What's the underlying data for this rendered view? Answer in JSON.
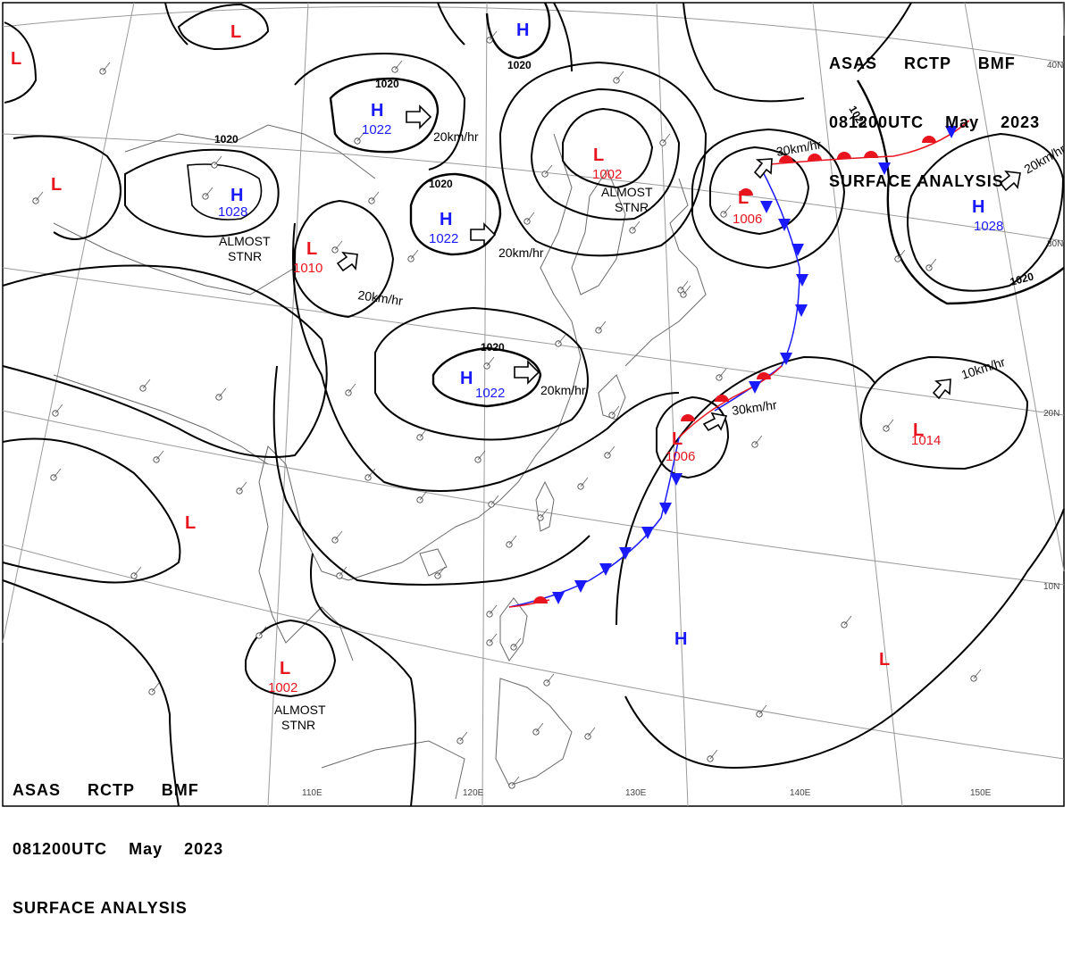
{
  "header": {
    "line1": [
      "ASAS",
      "RCTP",
      "BMF"
    ],
    "line2": [
      "081200UTC",
      "May",
      "2023"
    ],
    "line3": "SURFACE ANALYSIS"
  },
  "colors": {
    "high": "#1a1aff",
    "low": "#e8141e",
    "front_warm": "#e8141e",
    "front_cold": "#1a1aff",
    "isobar": "#000000",
    "grid": "#9a9a9a",
    "coast": "#6a6a6a"
  },
  "lat_labels": [
    "40N",
    "30N",
    "20N",
    "10N"
  ],
  "lon_labels": [
    "110E",
    "120E",
    "130E",
    "140E",
    "150E"
  ],
  "systems": [
    {
      "type": "H",
      "pressure": "1022"
    },
    {
      "type": "H",
      "pressure": "1028"
    },
    {
      "type": "H",
      "pressure": "1022"
    },
    {
      "type": "H",
      "pressure": "1022"
    },
    {
      "type": "H",
      "pressure": ""
    },
    {
      "type": "H",
      "pressure": "1028"
    },
    {
      "type": "H",
      "pressure": ""
    },
    {
      "type": "L",
      "pressure": "1010"
    },
    {
      "type": "L",
      "pressure": "1002"
    },
    {
      "type": "L",
      "pressure": "1006"
    },
    {
      "type": "L",
      "pressure": "1006"
    },
    {
      "type": "L",
      "pressure": "1014"
    },
    {
      "type": "L",
      "pressure": "1002"
    },
    {
      "type": "L",
      "pressure": ""
    },
    {
      "type": "L",
      "pressure": ""
    },
    {
      "type": "L",
      "pressure": ""
    },
    {
      "type": "L",
      "pressure": ""
    },
    {
      "type": "L",
      "pressure": ""
    }
  ],
  "isobar_labels": [
    "1020",
    "1020",
    "1020",
    "1020",
    "1020",
    "1020",
    "1020"
  ],
  "motions": [
    "20km/hr",
    "20km/hr",
    "20km/hr",
    "20km/hr",
    "30km/hr",
    "30km/hr",
    "20km/hr",
    "10km/hr"
  ],
  "notes": [
    "ALMOST",
    "STNR",
    "ALMOST",
    "STNR",
    "ALMOST",
    "STNR"
  ]
}
